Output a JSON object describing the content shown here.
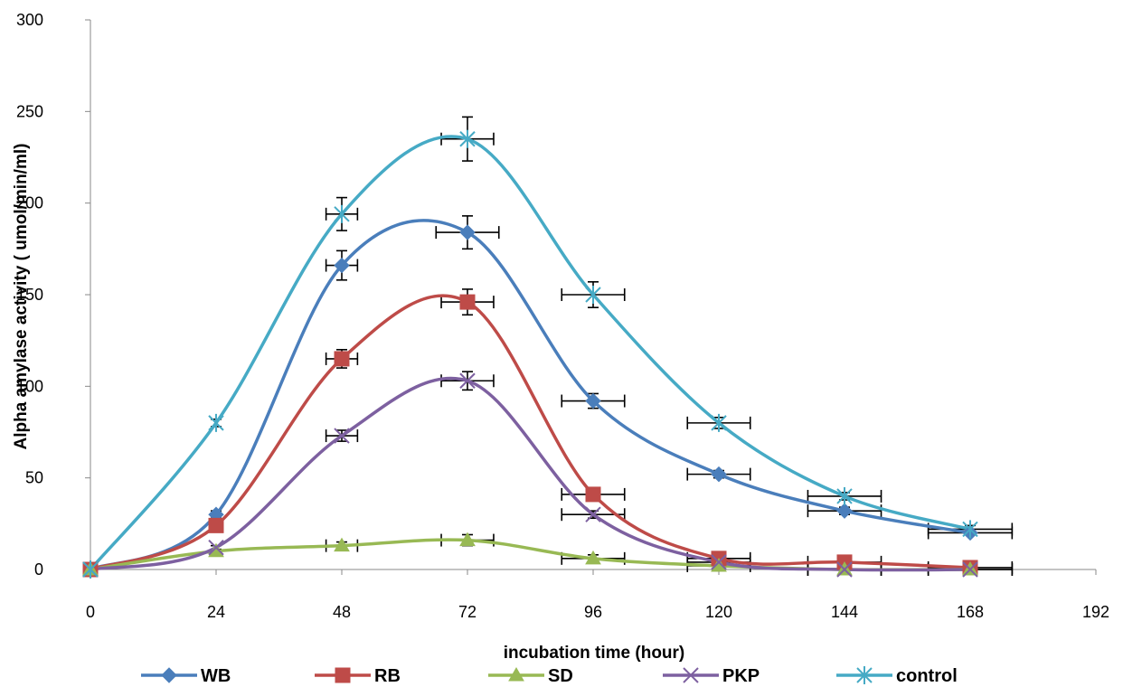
{
  "chart_data": {
    "type": "line",
    "title": "",
    "xlabel": "incubation time (hour)",
    "ylabel": "Alpha amylase activity ( umol/min/ml)",
    "xlim": [
      0,
      192
    ],
    "ylim": [
      0,
      300
    ],
    "x_ticks": [
      0,
      24,
      48,
      72,
      96,
      120,
      144,
      168,
      192
    ],
    "y_ticks": [
      0,
      50,
      100,
      150,
      200,
      250,
      300
    ],
    "x": [
      0,
      24,
      48,
      72,
      96,
      120,
      144,
      168
    ],
    "grid": false,
    "legend_position": "bottom",
    "series": [
      {
        "name": "WB",
        "color": "#4a7ebb",
        "marker": "diamond",
        "values": [
          0,
          30,
          166,
          184,
          92,
          52,
          32,
          20
        ],
        "yerr": [
          0,
          2,
          8,
          9,
          4,
          2,
          2,
          1
        ],
        "xerr": [
          0,
          0,
          3,
          6,
          6,
          6,
          7,
          8
        ]
      },
      {
        "name": "RB",
        "color": "#be4b48",
        "marker": "square",
        "values": [
          0,
          24,
          115,
          146,
          41,
          6,
          4,
          1
        ],
        "yerr": [
          0,
          2,
          5,
          7,
          3,
          1,
          1,
          1
        ],
        "xerr": [
          0,
          0,
          3,
          5,
          6,
          6,
          7,
          8
        ]
      },
      {
        "name": "SD",
        "color": "#98b954",
        "marker": "triangle",
        "values": [
          0,
          10,
          13,
          16,
          6,
          2,
          0,
          0
        ],
        "yerr": [
          0,
          1,
          2,
          3,
          2,
          1,
          1,
          1
        ],
        "xerr": [
          0,
          0,
          3,
          5,
          6,
          6,
          7,
          8
        ]
      },
      {
        "name": "PKP",
        "color": "#7d60a0",
        "marker": "x",
        "values": [
          0,
          12,
          73,
          103,
          30,
          4,
          0,
          0
        ],
        "yerr": [
          0,
          1,
          3,
          5,
          2,
          1,
          1,
          1
        ],
        "xerr": [
          0,
          0,
          3,
          5,
          6,
          6,
          7,
          8
        ]
      },
      {
        "name": "control",
        "color": "#46aac5",
        "marker": "star",
        "values": [
          0,
          80,
          194,
          235,
          150,
          80,
          40,
          22
        ],
        "yerr": [
          0,
          2,
          9,
          12,
          7,
          3,
          2,
          2
        ],
        "xerr": [
          0,
          0,
          3,
          5,
          6,
          6,
          7,
          8
        ]
      }
    ]
  }
}
